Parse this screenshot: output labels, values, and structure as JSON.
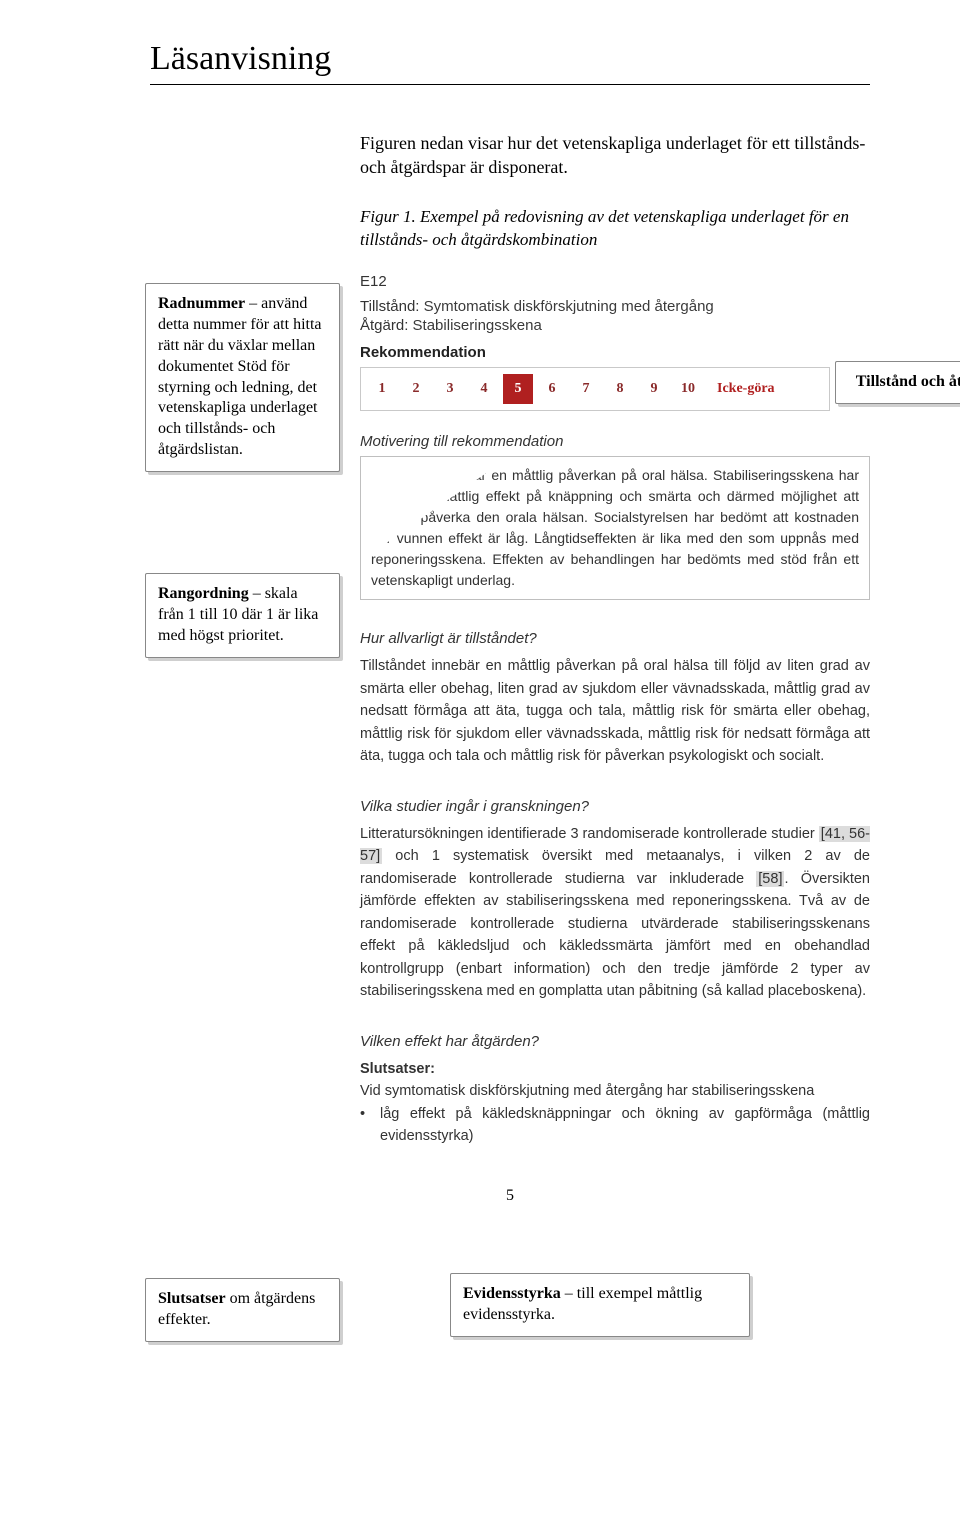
{
  "title": "Läsanvisning",
  "intro": "Figuren nedan visar hur det vetenskapliga underlaget för ett tillstånds- och åtgärdspar är disponerat.",
  "fig_caption": "Figur 1. Exempel på redovisning av det vetenskapliga underlaget för en tillstånds- och åtgärdskombination",
  "screenshot": {
    "code": "E12",
    "tillstand_label": "Tillstånd:",
    "tillstand_value": "Symtomatisk diskförskjutning med återgång",
    "atgard_label": "Åtgärd:",
    "atgard_value": "Stabiliseringsskena",
    "rek_header": "Rekommendation",
    "scale": [
      "1",
      "2",
      "3",
      "4",
      "5",
      "6",
      "7",
      "8",
      "9",
      "10"
    ],
    "selected_index": 4,
    "icke_gora": "Icke-göra",
    "mot_header": "Motivering till rekommendation",
    "mot_text": "Tillståndet innebär en måttlig påverkan på oral hälsa. Stabiliseringsskena har en låg till måttlig effekt på knäppning och smärta och därmed möjlighet att positivt påverka den orala hälsan. Socialstyrelsen har bedömt att kostnaden per vunnen effekt är låg. Långtidseffekten är lika med den som uppnås med reponeringsskena. Effekten av behandlingen har bedömts med stöd från ett vetenskapligt underlag.",
    "hur_header": "Hur allvarligt är tillståndet?",
    "hur_text": "Tillståndet innebär en måttlig påverkan på oral hälsa till följd av liten grad av smärta eller obehag, liten grad av sjukdom eller vävnadsskada, måttlig grad av nedsatt förmåga att äta, tugga och tala, måttlig risk för smärta eller obehag, måttlig risk för sjukdom eller vävnadsskada, måttlig risk för nedsatt förmåga att äta, tugga och tala och måttlig risk för påverkan psykologiskt och socialt.",
    "vilka_header": "Vilka studier ingår i granskningen?",
    "vilka_pre": "Litteratursökningen identifierade 3 randomiserade kontrollerade studier ",
    "vilka_ref1": "[41, 56-57]",
    "vilka_mid": " och 1 systematisk översikt med metaanalys, i vilken 2 av de randomiserade kontrollerade studierna var inkluderade ",
    "vilka_ref2": "[58]",
    "vilka_post": ". Översikten jämförde effekten av stabiliseringsskena med reponeringsskena. Två av de randomiserade kontrollerade studierna utvärderade stabiliseringsskenans effekt på käkledsljud och käkledssmärta jämfört med en obehandlad kontrollgrupp (enbart information) och den tredje jämförde 2 typer av stabiliseringsskena med en gomplatta utan påbitning (så kallad placeboskena).",
    "vilken_header": "Vilken effekt har åtgärden?",
    "slutsatser_label": "Slutsatser:",
    "slut_line": "Vid symtomatisk diskförskjutning med återgång har stabiliseringsskena",
    "bullet": "låg effekt på käkledsknäppningar och ökning av gapförmåga (måttlig evidensstyrka)"
  },
  "callouts": {
    "radnummer_bold": "Radnummer",
    "radnummer_rest": " – använd detta nummer för att hitta rätt när du växlar mellan dokumentet Stöd för styrning och ledning, det vetenskapliga underlaget och tillstånds- och åtgärdslistan.",
    "tillstand": "Tillstånd och åtgärd",
    "rang_bold": "Rangordning",
    "rang_rest": " – skala från 1 till 10 där 1 är lika med högst prioritet.",
    "slut_bold": "Slutsatser",
    "slut_rest": " om åtgärdens effekter.",
    "evid_bold": "Evidensstyrka",
    "evid_rest": " – till exempel måttlig evidensstyrka."
  },
  "page_number": "5",
  "colors": {
    "selected_bg": "#b02020",
    "ref_highlight": "#dcdcdc"
  }
}
